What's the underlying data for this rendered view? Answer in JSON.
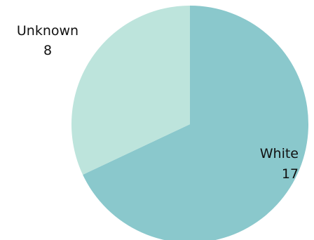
{
  "chart_data": {
    "type": "pie",
    "title": "",
    "slices": [
      {
        "label": "White",
        "value": 17,
        "color": "#8ac8cc"
      },
      {
        "label": "Unknown",
        "value": 8,
        "color": "#bde4dc"
      }
    ],
    "start": "top, clockwise",
    "legend": "none",
    "data_labels": "category and value beside each slice"
  }
}
